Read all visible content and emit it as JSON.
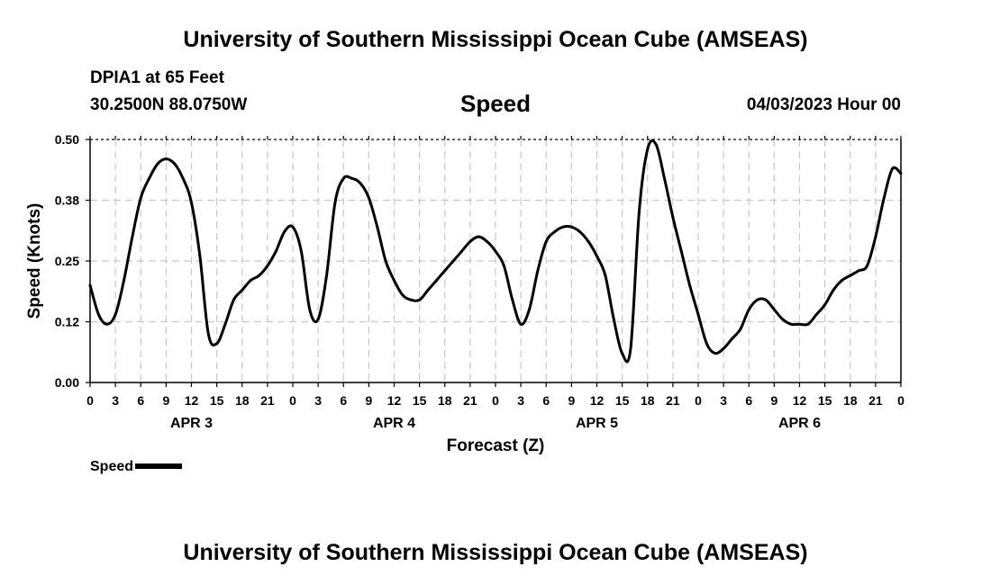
{
  "header": {
    "title": "University of Southern Mississippi Ocean Cube (AMSEAS)",
    "station": "DPIA1 at 65 Feet",
    "coordinates": "30.2500N  88.0750W",
    "variable": "Speed",
    "datetime": "04/03/2023 Hour 00"
  },
  "footer": {
    "title": "University of Southern Mississippi Ocean Cube (AMSEAS)"
  },
  "chart_data": {
    "type": "line",
    "title": "Speed",
    "xlabel": "Forecast (Z)",
    "ylabel": "Speed (Knots)",
    "xlim": [
      0,
      96
    ],
    "ylim": [
      0,
      0.5
    ],
    "yticks": [
      0.0,
      0.125,
      0.25,
      0.375,
      0.5
    ],
    "ytick_labels": [
      "0.00",
      "0.12",
      "0.25",
      "0.38",
      "0.50"
    ],
    "xticks": [
      0,
      3,
      6,
      9,
      12,
      15,
      18,
      21,
      24,
      27,
      30,
      33,
      36,
      39,
      42,
      45,
      48,
      51,
      54,
      57,
      60,
      63,
      66,
      69,
      72,
      75,
      78,
      81,
      84,
      87,
      90,
      93,
      96
    ],
    "xtick_labels": [
      "0",
      "3",
      "6",
      "9",
      "12",
      "15",
      "18",
      "21",
      "0",
      "3",
      "6",
      "9",
      "12",
      "15",
      "18",
      "21",
      "0",
      "3",
      "6",
      "9",
      "12",
      "15",
      "18",
      "21",
      "0",
      "3",
      "6",
      "9",
      "12",
      "15",
      "18",
      "21",
      "0"
    ],
    "day_labels": [
      {
        "label": "APR 3",
        "x": 12
      },
      {
        "label": "APR 4",
        "x": 36
      },
      {
        "label": "APR 5",
        "x": 60
      },
      {
        "label": "APR 6",
        "x": 84
      }
    ],
    "grid": true,
    "legend": [
      {
        "name": "Speed",
        "color": "#000000"
      }
    ],
    "series": [
      {
        "name": "Speed",
        "x": [
          0,
          1,
          2,
          3,
          4,
          5,
          6,
          7,
          8,
          9,
          10,
          11,
          12,
          13,
          14,
          15,
          16,
          17,
          18,
          19,
          20,
          21,
          22,
          23,
          24,
          25,
          26,
          27,
          28,
          29,
          30,
          31,
          32,
          33,
          34,
          35,
          36,
          37,
          38,
          39,
          40,
          41,
          42,
          43,
          44,
          45,
          46,
          47,
          48,
          49,
          50,
          51,
          52,
          53,
          54,
          55,
          56,
          57,
          58,
          59,
          60,
          61,
          62,
          63,
          64,
          65,
          66,
          67,
          68,
          69,
          70,
          71,
          72,
          73,
          74,
          75,
          76,
          77,
          78,
          79,
          80,
          81,
          82,
          83,
          84,
          85,
          86,
          87,
          88,
          89,
          90,
          91,
          92,
          93,
          94,
          95,
          96
        ],
        "values": [
          0.2,
          0.14,
          0.12,
          0.14,
          0.21,
          0.3,
          0.38,
          0.42,
          0.45,
          0.46,
          0.45,
          0.42,
          0.37,
          0.26,
          0.1,
          0.08,
          0.12,
          0.17,
          0.19,
          0.21,
          0.22,
          0.24,
          0.27,
          0.31,
          0.32,
          0.27,
          0.15,
          0.13,
          0.22,
          0.37,
          0.42,
          0.42,
          0.41,
          0.38,
          0.32,
          0.25,
          0.21,
          0.18,
          0.17,
          0.17,
          0.19,
          0.21,
          0.23,
          0.25,
          0.27,
          0.29,
          0.3,
          0.29,
          0.27,
          0.24,
          0.17,
          0.12,
          0.15,
          0.23,
          0.29,
          0.31,
          0.32,
          0.32,
          0.31,
          0.29,
          0.26,
          0.22,
          0.13,
          0.06,
          0.07,
          0.35,
          0.48,
          0.49,
          0.42,
          0.34,
          0.27,
          0.2,
          0.14,
          0.08,
          0.06,
          0.07,
          0.09,
          0.11,
          0.15,
          0.17,
          0.17,
          0.15,
          0.13,
          0.12,
          0.12,
          0.12,
          0.14,
          0.16,
          0.19,
          0.21,
          0.22,
          0.23,
          0.24,
          0.3,
          0.38,
          0.44,
          0.43
        ]
      }
    ]
  }
}
